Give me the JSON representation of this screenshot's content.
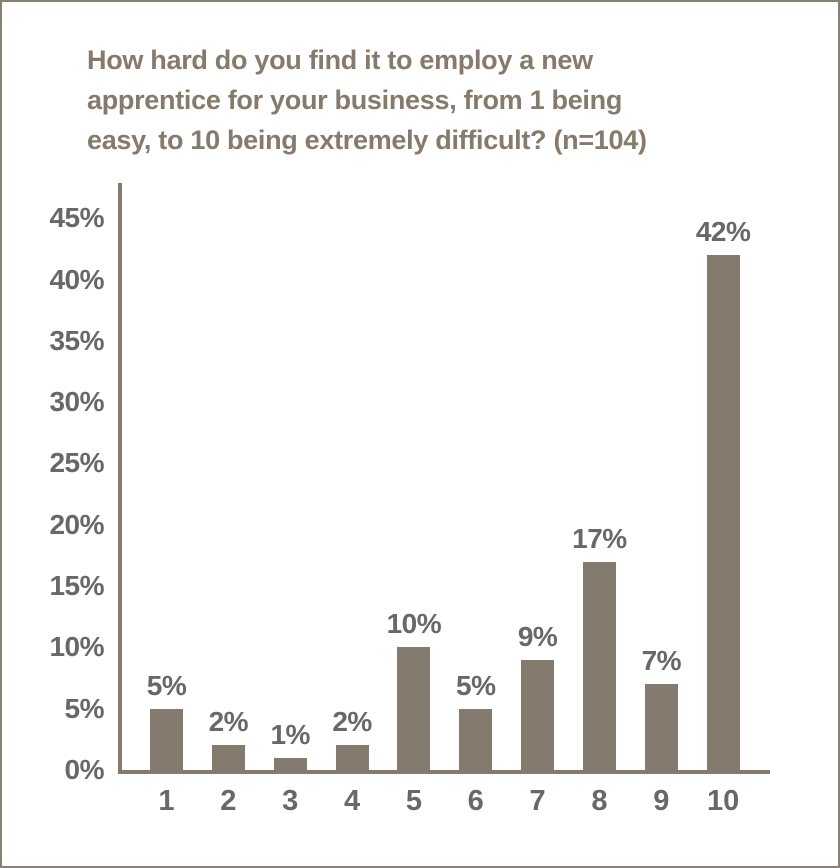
{
  "chart_data": {
    "type": "bar",
    "title": "How hard do you find it to employ a new apprentice for your business, from 1 being easy, to 10 being extremely difficult? (n=104)",
    "title_lines": [
      "How hard do you find it to employ a new",
      "apprentice for your business, from 1 being",
      "easy, to 10 being extremely difficult? (n=104)"
    ],
    "categories": [
      "1",
      "2",
      "3",
      "4",
      "5",
      "6",
      "7",
      "8",
      "9",
      "10"
    ],
    "values": [
      5,
      2,
      1,
      2,
      10,
      5,
      9,
      17,
      7,
      42
    ],
    "value_labels": [
      "5%",
      "2%",
      "1%",
      "2%",
      "10%",
      "5%",
      "9%",
      "17%",
      "7%",
      "42%"
    ],
    "y_ticks": [
      "0%",
      "5%",
      "10%",
      "15%",
      "20%",
      "25%",
      "30%",
      "35%",
      "40%",
      "45%"
    ],
    "y_tick_values": [
      0,
      5,
      10,
      15,
      20,
      25,
      30,
      35,
      40,
      45
    ],
    "ylim": [
      0,
      45
    ],
    "xlabel": "",
    "ylabel": "",
    "grid": false,
    "legend": null,
    "colors": {
      "bar": "#847B6E",
      "axis": "#847B6E",
      "label": "#66686A",
      "title": "#857A6B",
      "frame_border": "#878073",
      "background": "#FFFFFF"
    }
  }
}
